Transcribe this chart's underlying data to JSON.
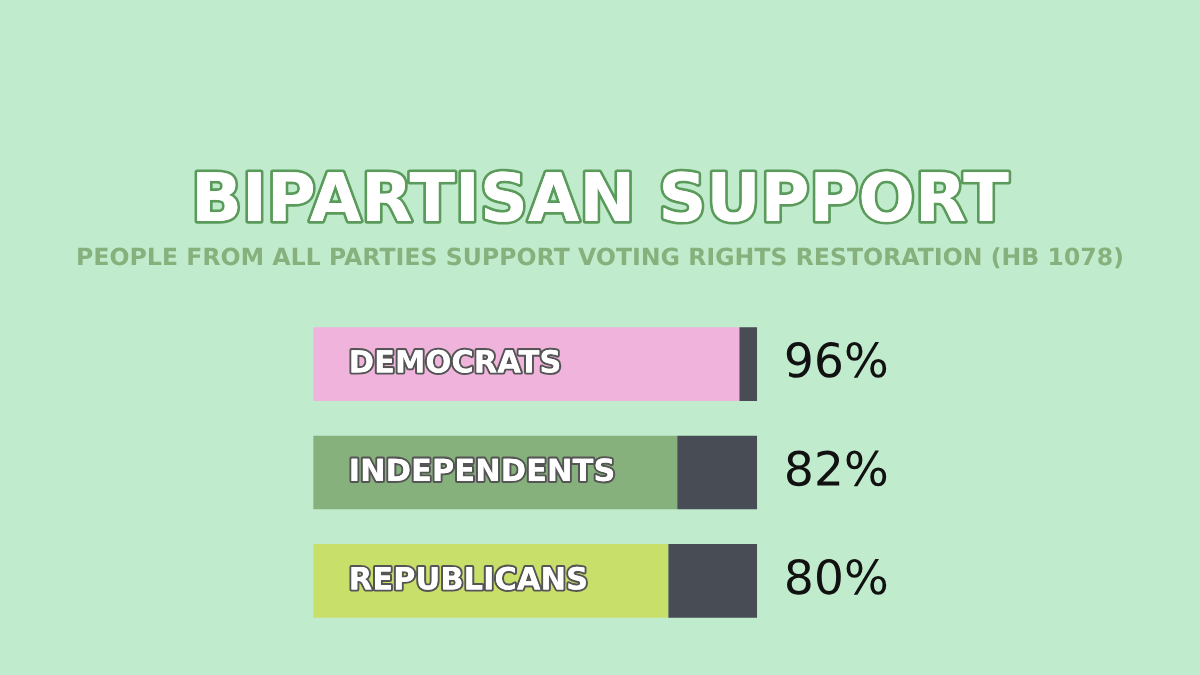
{
  "chart_data": {
    "type": "bar",
    "orientation": "horizontal",
    "stacked": true,
    "title": "BIPARTISAN SUPPORT",
    "subtitle": "PEOPLE FROM ALL PARTIES SUPPORT VOTING RIGHTS RESTORATION (HB 1078)",
    "categories": [
      "DEMOCRATS",
      "INDEPENDENTS",
      "REPUBLICANS"
    ],
    "series": [
      {
        "values": [
          96,
          82,
          80
        ],
        "colors": [
          "#f0b3dc",
          "#86b07c",
          "#c8e06a"
        ],
        "value_labels": [
          "96%",
          "82%",
          "80%"
        ]
      },
      {
        "values": [
          4,
          18,
          20
        ],
        "color": "#474c55"
      }
    ],
    "xlim": [
      0,
      100
    ]
  }
}
